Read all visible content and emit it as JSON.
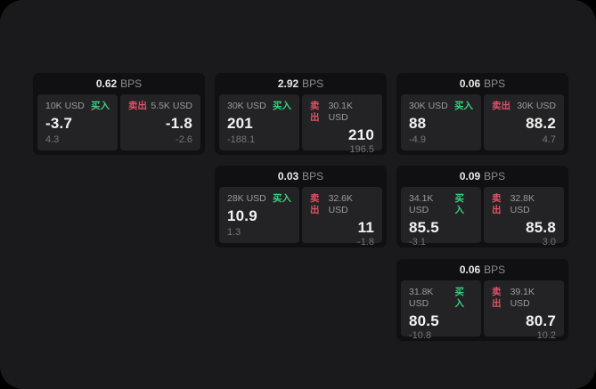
{
  "colors": {
    "window_bg": "#1a1a1c",
    "card_bg": "#101012",
    "panel_bg": "#232325",
    "buy": "#3ecf7f",
    "sell": "#e05266"
  },
  "labels": {
    "bps": "BPS",
    "buy": "买入",
    "sell": "卖出"
  },
  "cards": [
    {
      "col": 0,
      "row": 0,
      "bps": "0.62",
      "buy": {
        "amount": "10K USD",
        "value": "-3.7",
        "delta": "4.3"
      },
      "sell": {
        "amount": "5.5K USD",
        "value": "-1.8",
        "delta": "-2.6"
      }
    },
    {
      "col": 1,
      "row": 0,
      "bps": "2.92",
      "buy": {
        "amount": "30K USD",
        "value": "201",
        "delta": "-188.1"
      },
      "sell": {
        "amount": "30.1K USD",
        "value": "210",
        "delta": "196.5"
      }
    },
    {
      "col": 2,
      "row": 0,
      "bps": "0.06",
      "buy": {
        "amount": "30K USD",
        "value": "88",
        "delta": "-4.9"
      },
      "sell": {
        "amount": "30K USD",
        "value": "88.2",
        "delta": "4.7"
      }
    },
    {
      "col": 1,
      "row": 1,
      "bps": "0.03",
      "buy": {
        "amount": "28K USD",
        "value": "10.9",
        "delta": "1.3"
      },
      "sell": {
        "amount": "32.6K USD",
        "value": "11",
        "delta": "-1.8"
      }
    },
    {
      "col": 2,
      "row": 1,
      "bps": "0.09",
      "buy": {
        "amount": "34.1K USD",
        "value": "85.5",
        "delta": "-3.1"
      },
      "sell": {
        "amount": "32.8K USD",
        "value": "85.8",
        "delta": "3.0"
      }
    },
    {
      "col": 2,
      "row": 2,
      "bps": "0.06",
      "buy": {
        "amount": "31.8K USD",
        "value": "80.5",
        "delta": "-10.8"
      },
      "sell": {
        "amount": "39.1K USD",
        "value": "80.7",
        "delta": "10.2"
      }
    }
  ]
}
